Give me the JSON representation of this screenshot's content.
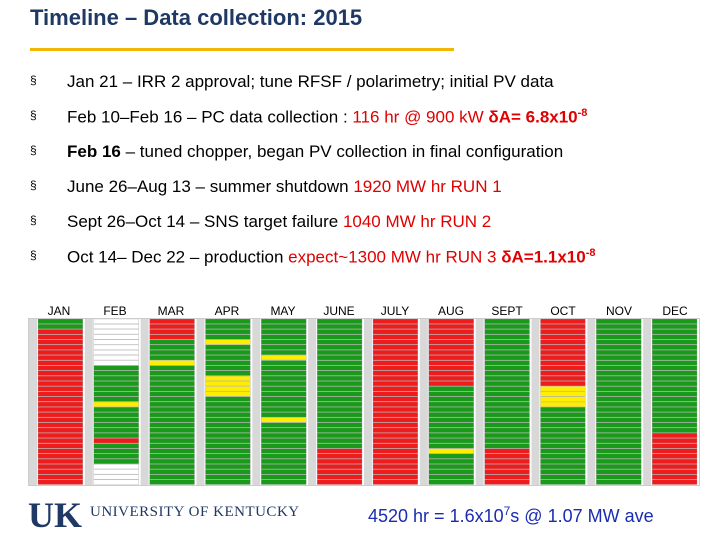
{
  "title": "Timeline – Data collection: 2015",
  "bullets": [
    {
      "mark": "§",
      "pre": "Jan 21 – IRR 2 approval;  tune RFSF / polarimetry;  initial PV data",
      "red": "",
      "base": "",
      "exp": "",
      "post": ""
    },
    {
      "mark": "§",
      "pre": "Feb 10–Feb 16 – PC data collection :  ",
      "red": "116 hr @ 900 kW  ",
      "base": "δA= 6.8x10",
      "exp": "-8",
      "post": ""
    },
    {
      "mark": "§",
      "pre_bold": "Feb 16",
      "pre": " – tuned chopper, began PV collection in final configuration",
      "red": "",
      "base": "",
      "exp": "",
      "post": ""
    },
    {
      "mark": "§",
      "pre": "June 26–Aug 13 – summer shutdown  ",
      "red": "1920 MW hr  RUN 1",
      "base": "",
      "exp": "",
      "post": ""
    },
    {
      "mark": "§",
      "pre": "Sept 26–Oct 14  – SNS target failure   ",
      "red": "1040 MW hr  RUN 2",
      "base": "",
      "exp": "",
      "post": ""
    },
    {
      "mark": "§",
      "pre": "Oct 14– Dec 22  – production  ",
      "red": "expect~1300 MW hr  RUN 3 ",
      "base": "δA=1.1x10",
      "exp": "-8",
      "post": ""
    }
  ],
  "months": [
    "JAN",
    "FEB",
    "MAR",
    "APR",
    "MAY",
    "JUNE",
    "JULY",
    "AUG",
    "SEPT",
    "OCT",
    "NOV",
    "DEC"
  ],
  "calendar": {
    "colors": {
      "green": "#1a9a1a",
      "red": "#ee1c1c",
      "yellow": "#ffee00",
      "orange": "#ff8c00",
      "blue": "#2f6fd0",
      "white": "#ffffff",
      "gray": "#d8d8d8"
    },
    "columns": [
      {
        "month": "JAN",
        "pattern": "GGRRRRRRRRRRRRRRRRRRRRRRRRRRRRRR"
      },
      {
        "month": "FEB",
        "pattern": "WWWWWWWWWGGGGGGGYGGGGGGRGGGGWWWW"
      },
      {
        "month": "MAR",
        "pattern": "RRRRGGGGYGGGGGGGGGGGGGGGGGGGGGGG"
      },
      {
        "month": "APR",
        "pattern": "GGGGYGGGGGGYYYYGGGGGGGGGGGGGGGGG"
      },
      {
        "month": "MAY",
        "pattern": "GGGGGGGYGGGGGGGGGGGYGGGGGGGGGGGG"
      },
      {
        "month": "JUNE",
        "pattern": "GGGGGGGGGGGGGGGGGGGGGGGGGRRRRRRR"
      },
      {
        "month": "JULY",
        "pattern": "RRRRRRRRRRRRRRRRRRRRRRRRRRRRRRRR"
      },
      {
        "month": "AUG",
        "pattern": "RRRRRRRRRRRRRGGGGGGGGGGGGYGGGGGG"
      },
      {
        "month": "SEPT",
        "pattern": "GGGGGGGGGGGGGGGGGGGGGGGGGRRRRRRR"
      },
      {
        "month": "OCT",
        "pattern": "RRRRRRRRRRRRRYYYYGGGGGGGGGGGGGGG"
      },
      {
        "month": "NOV",
        "pattern": "GGGGGGGGGGGGGGGGGGGGGGGGGGGGGGGG"
      },
      {
        "month": "DEC",
        "pattern": "GGGGGGGGGGGGGGGGGGGGGGRRRRRRRRRR"
      }
    ]
  },
  "logo": {
    "letters": "UK",
    "university": "UNIVERSITY OF KENTUCKY"
  },
  "footer": {
    "pre": "4520 hr = 1.6x10",
    "exp": "7",
    "post": "s @ 1.07 MW ave"
  }
}
